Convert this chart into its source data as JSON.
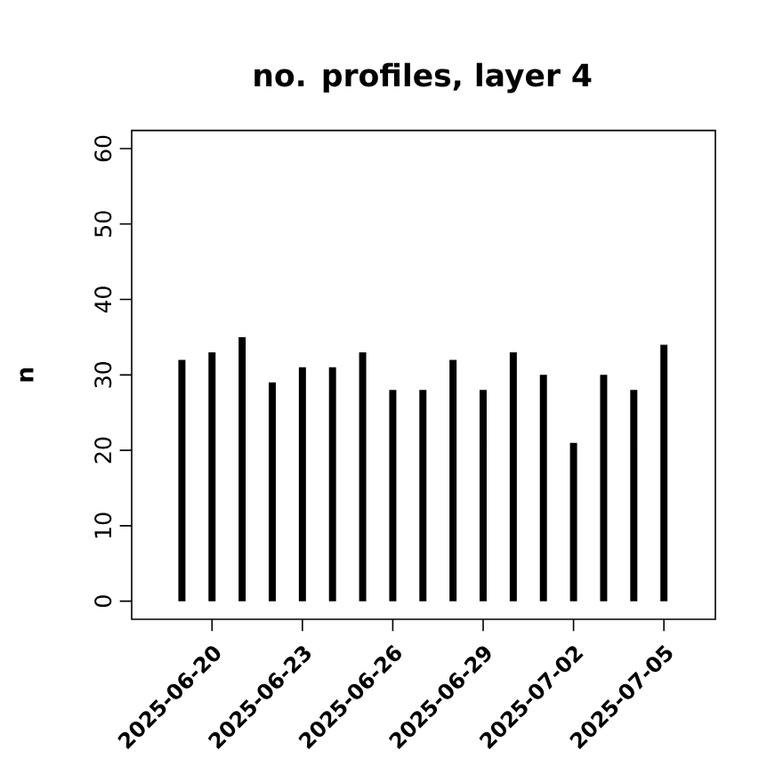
{
  "chart_data": {
    "type": "bar",
    "title": "no. profiles, layer 4",
    "ylabel": "n",
    "x": [
      "2025-06-19",
      "2025-06-20",
      "2025-06-21",
      "2025-06-22",
      "2025-06-23",
      "2025-06-24",
      "2025-06-25",
      "2025-06-26",
      "2025-06-27",
      "2025-06-28",
      "2025-06-29",
      "2025-06-30",
      "2025-07-01",
      "2025-07-02",
      "2025-07-03",
      "2025-07-04",
      "2025-07-05"
    ],
    "values": [
      32,
      33,
      35,
      29,
      31,
      31,
      33,
      28,
      28,
      32,
      28,
      33,
      30,
      21,
      30,
      28,
      34
    ],
    "color": "#000000",
    "xlim": [
      "2025-06-17T08:00",
      "2025-07-06T17:00"
    ],
    "xticks": [
      "2025-06-20",
      "2025-06-23",
      "2025-06-26",
      "2025-06-29",
      "2025-07-02",
      "2025-07-05"
    ],
    "ylim": [
      -2.4,
      62.4
    ],
    "yticks": [
      0,
      10,
      20,
      30,
      40,
      50,
      60
    ],
    "grid": false
  }
}
